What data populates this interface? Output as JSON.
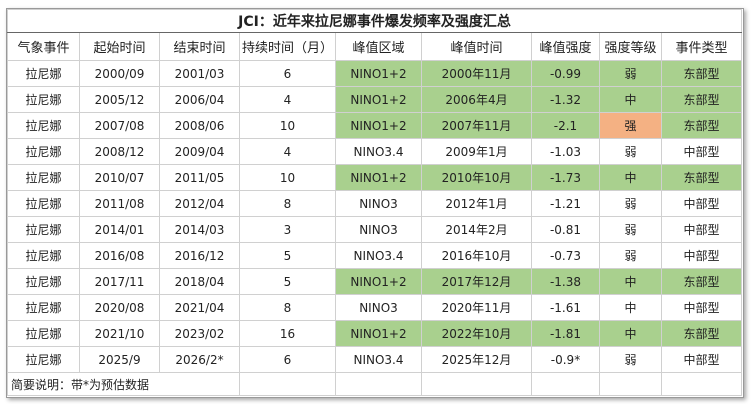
{
  "title": "JCI：近年来拉尼娜事件爆发频率及强度汇总",
  "header": [
    "气象事件",
    "起始时间",
    "结束时间",
    "持续时间（月）",
    "峰值区域",
    "峰值时间",
    "峰值强度",
    "强度等级",
    "事件类型"
  ],
  "rows": [
    [
      "拉尼娜",
      "2000/09",
      "2001/03",
      "6",
      "NINO1+2",
      "2000年11月",
      "-0.99",
      "弱",
      "东部型"
    ],
    [
      "拉尼娜",
      "2005/12",
      "2006/04",
      "4",
      "NINO1+2",
      "2006年4月",
      "-1.32",
      "中",
      "东部型"
    ],
    [
      "拉尼娜",
      "2007/08",
      "2008/06",
      "10",
      "NINO1+2",
      "2007年11月",
      "-2.1",
      "强",
      "东部型"
    ],
    [
      "拉尼娜",
      "2008/12",
      "2009/04",
      "4",
      "NINO3.4",
      "2009年1月",
      "-1.03",
      "弱",
      "中部型"
    ],
    [
      "拉尼娜",
      "2010/07",
      "2011/05",
      "10",
      "NINO1+2",
      "2010年10月",
      "-1.73",
      "中",
      "东部型"
    ],
    [
      "拉尼娜",
      "2011/08",
      "2012/04",
      "8",
      "NINO3",
      "2012年1月",
      "-1.21",
      "弱",
      "中部型"
    ],
    [
      "拉尼娜",
      "2014/01",
      "2014/03",
      "3",
      "NINO3",
      "2014年2月",
      "-0.81",
      "弱",
      "中部型"
    ],
    [
      "拉尼娜",
      "2016/08",
      "2016/12",
      "5",
      "NINO3.4",
      "2016年10月",
      "-0.73",
      "弱",
      "中部型"
    ],
    [
      "拉尼娜",
      "2017/11",
      "2018/04",
      "5",
      "NINO1+2",
      "2017年12月",
      "-1.38",
      "中",
      "东部型"
    ],
    [
      "拉尼娜",
      "2020/08",
      "2021/04",
      "8",
      "NINO3",
      "2020年11月",
      "-1.61",
      "中",
      "中部型"
    ],
    [
      "拉尼娜",
      "2021/10",
      "2023/02",
      "16",
      "NINO1+2",
      "2022年10月",
      "-1.81",
      "中",
      "东部型"
    ],
    [
      "拉尼娜",
      "2025/9",
      "2026/2*",
      "6",
      "NINO3.4",
      "2025年12月",
      "-0.9*",
      "弱",
      "中部型"
    ]
  ],
  "note": "简要说明：带*为预估数据"
}
